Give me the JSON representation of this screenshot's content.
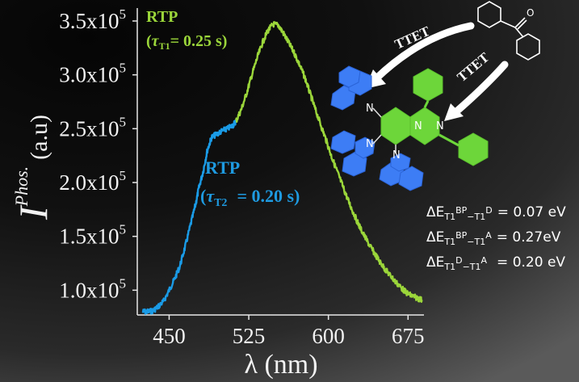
{
  "chart_data": {
    "type": "line",
    "ylabel_main": "I",
    "ylabel_sup": "Phos.",
    "ylabel_unit": "(a.u)",
    "xlabel": "λ (nm)",
    "xlim": [
      420,
      690
    ],
    "ylim": [
      77000,
      362000
    ],
    "x_ticks": [
      {
        "value": 450,
        "label": "450"
      },
      {
        "value": 525,
        "label": "525"
      },
      {
        "value": 600,
        "label": "600"
      },
      {
        "value": 675,
        "label": "675"
      }
    ],
    "y_ticks": [
      {
        "value": 100000,
        "mant": "1.0x10",
        "exp": "5"
      },
      {
        "value": 150000,
        "mant": "1.5x10",
        "exp": "5"
      },
      {
        "value": 200000,
        "mant": "2.0x10",
        "exp": "5"
      },
      {
        "value": 250000,
        "mant": "2.5x10",
        "exp": "5"
      },
      {
        "value": 300000,
        "mant": "3.0x10",
        "exp": "5"
      },
      {
        "value": 350000,
        "mant": "3.5x10",
        "exp": "5"
      }
    ],
    "series": [
      {
        "color": "#1a9be6",
        "x": [
          425,
          430,
          435,
          440,
          445,
          450,
          455,
          460,
          465,
          470,
          475,
          478,
          482,
          486,
          490,
          495,
          500,
          505,
          510,
          513
        ],
        "y": [
          80000,
          80000,
          81000,
          85000,
          90000,
          100000,
          110000,
          122000,
          140000,
          160000,
          180000,
          195000,
          210000,
          230000,
          242000,
          245000,
          248000,
          250000,
          253000,
          257000
        ]
      },
      {
        "color": "#9bd63a",
        "x": [
          513,
          518,
          523,
          528,
          533,
          538,
          543,
          548,
          553,
          558,
          563,
          568,
          573,
          578,
          583,
          588,
          593,
          598,
          603,
          608,
          613,
          618,
          623,
          628,
          633,
          638,
          643,
          648,
          653,
          658,
          663,
          668,
          673,
          678,
          683,
          688
        ],
        "y": [
          257000,
          268000,
          283000,
          300000,
          316000,
          330000,
          341000,
          347000,
          346000,
          338000,
          329000,
          320000,
          309000,
          297000,
          282000,
          267000,
          253000,
          239000,
          224000,
          211000,
          198000,
          185000,
          173000,
          162000,
          152000,
          143000,
          135000,
          127000,
          120000,
          114000,
          108000,
          103000,
          98000,
          95000,
          93000,
          91000
        ]
      }
    ]
  },
  "annotations": {
    "rtp_green": "RTP",
    "tau_green": "= 0.25 s)",
    "rtp_blue": "RTP",
    "tau_blue": "= 0.20 s)",
    "ttet_1": "TTET",
    "ttet_2": "TTET",
    "energy_1": "= 0.07 eV",
    "energy_2": "= 0.27eV",
    "energy_3": "= 0.20 eV"
  },
  "molecule": {
    "colors": {
      "donor": "#3d7df5",
      "acceptor": "#6dd63a",
      "benzophenone": "#ffffff"
    },
    "atom_labels": [
      "N",
      "N",
      "N",
      "N",
      "N",
      "O"
    ]
  }
}
